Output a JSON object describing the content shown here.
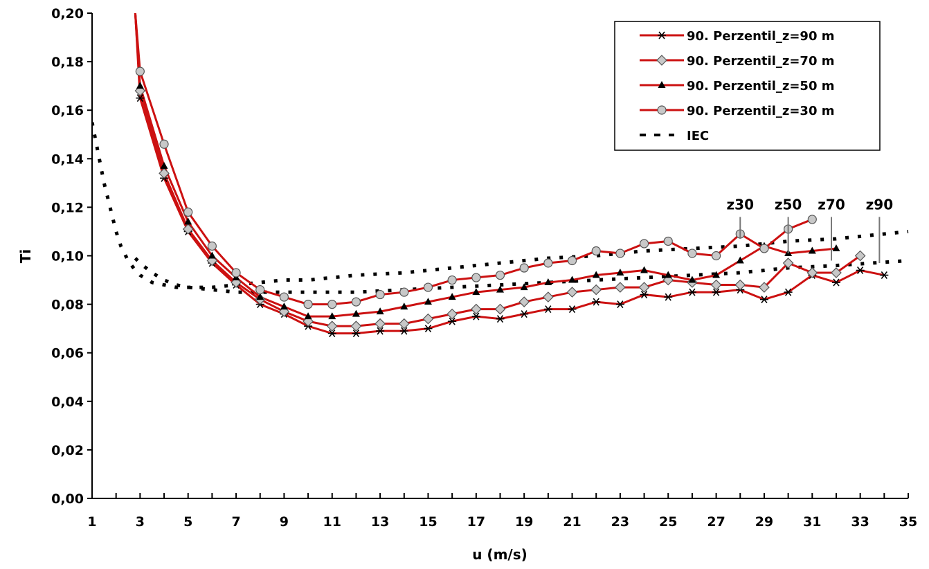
{
  "chart_data": {
    "type": "line",
    "xlabel": "u (m/s)",
    "ylabel": "Ti",
    "xlim": [
      1,
      35
    ],
    "ylim": [
      0,
      0.2
    ],
    "x_ticks": [
      "1",
      "3",
      "5",
      "7",
      "9",
      "11",
      "13",
      "15",
      "17",
      "19",
      "21",
      "23",
      "25",
      "27",
      "29",
      "31",
      "33",
      "35"
    ],
    "y_ticks": [
      "0,00",
      "0,02",
      "0,04",
      "0,06",
      "0,08",
      "0,10",
      "0,12",
      "0,14",
      "0,16",
      "0,18",
      "0,20"
    ],
    "legend_position": "top-right",
    "grid": false,
    "colors": {
      "series_line": "#cc1111",
      "marker_fill": "#c8c8c8",
      "iec": "#000000"
    },
    "series": [
      {
        "name": "90. Perzentil_z=90 m",
        "marker": "asterisk",
        "x": [
          2.8,
          3,
          4,
          5,
          6,
          7,
          8,
          9,
          10,
          11,
          12,
          13,
          14,
          15,
          16,
          17,
          18,
          19,
          20,
          21,
          22,
          23,
          24,
          25,
          26,
          27,
          28,
          29,
          30,
          31,
          32,
          33,
          34
        ],
        "y": [
          0.2,
          0.165,
          0.132,
          0.11,
          0.097,
          0.088,
          0.08,
          0.076,
          0.071,
          0.068,
          0.068,
          0.069,
          0.069,
          0.07,
          0.073,
          0.075,
          0.074,
          0.076,
          0.078,
          0.078,
          0.081,
          0.08,
          0.084,
          0.083,
          0.085,
          0.085,
          0.086,
          0.082,
          0.085,
          0.092,
          0.089,
          0.094,
          0.092
        ]
      },
      {
        "name": "90. Perzentil_z=70 m",
        "marker": "diamond",
        "x": [
          2.8,
          3,
          4,
          5,
          6,
          7,
          8,
          9,
          10,
          11,
          12,
          13,
          14,
          15,
          16,
          17,
          18,
          19,
          20,
          21,
          22,
          23,
          24,
          25,
          26,
          27,
          28,
          29,
          30,
          31,
          32,
          33
        ],
        "y": [
          0.2,
          0.168,
          0.134,
          0.111,
          0.098,
          0.089,
          0.082,
          0.077,
          0.073,
          0.071,
          0.071,
          0.072,
          0.072,
          0.074,
          0.076,
          0.078,
          0.078,
          0.081,
          0.083,
          0.085,
          0.086,
          0.087,
          0.087,
          0.09,
          0.089,
          0.088,
          0.088,
          0.087,
          0.097,
          0.093,
          0.093,
          0.1
        ]
      },
      {
        "name": "90. Perzentil_z=50 m",
        "marker": "triangle",
        "x": [
          2.8,
          3,
          4,
          5,
          6,
          7,
          8,
          9,
          10,
          11,
          12,
          13,
          14,
          15,
          16,
          17,
          18,
          19,
          20,
          21,
          22,
          23,
          24,
          25,
          26,
          27,
          28,
          29,
          30,
          31,
          32
        ],
        "y": [
          0.2,
          0.17,
          0.137,
          0.114,
          0.1,
          0.091,
          0.083,
          0.079,
          0.075,
          0.075,
          0.076,
          0.077,
          0.079,
          0.081,
          0.083,
          0.085,
          0.086,
          0.087,
          0.089,
          0.09,
          0.092,
          0.093,
          0.094,
          0.092,
          0.09,
          0.092,
          0.098,
          0.104,
          0.101,
          0.102,
          0.103
        ]
      },
      {
        "name": "90. Perzentil_z=30 m",
        "marker": "circle",
        "x": [
          2.8,
          3,
          4,
          5,
          6,
          7,
          8,
          9,
          10,
          11,
          12,
          13,
          14,
          15,
          16,
          17,
          18,
          19,
          20,
          21,
          22,
          23,
          24,
          25,
          26,
          27,
          28,
          29,
          30,
          31
        ],
        "y": [
          0.2,
          0.176,
          0.146,
          0.118,
          0.104,
          0.093,
          0.086,
          0.083,
          0.08,
          0.08,
          0.081,
          0.084,
          0.085,
          0.087,
          0.09,
          0.091,
          0.092,
          0.095,
          0.097,
          0.098,
          0.102,
          0.101,
          0.105,
          0.106,
          0.101,
          0.1,
          0.109,
          0.103,
          0.111,
          0.115
        ]
      },
      {
        "name": "IEC",
        "style": "dashed",
        "curves": [
          {
            "x": [
              1,
              1.2,
              1.5,
              1.8,
              2,
              2.2,
              2.5,
              2.8,
              3,
              3.5,
              4,
              4.5,
              5,
              6,
              7,
              8,
              9,
              10,
              11,
              12,
              14,
              16,
              18,
              20,
              22,
              24,
              26,
              28,
              30,
              32,
              35
            ],
            "y": [
              0.155,
              0.145,
              0.13,
              0.118,
              0.11,
              0.104,
              0.098,
              0.094,
              0.092,
              0.089,
              0.088,
              0.087,
              0.087,
              0.087,
              0.088,
              0.089,
              0.09,
              0.09,
              0.091,
              0.092,
              0.093,
              0.095,
              0.097,
              0.099,
              0.1,
              0.102,
              0.103,
              0.104,
              0.106,
              0.107,
              0.11
            ]
          },
          {
            "x": [
              2.8,
              3,
              3.5,
              4,
              4.5,
              5,
              6,
              7,
              8,
              9,
              10,
              11,
              12,
              14,
              16,
              18,
              20,
              22,
              24,
              26,
              28,
              30,
              32,
              35
            ],
            "y": [
              0.099,
              0.097,
              0.093,
              0.09,
              0.088,
              0.087,
              0.086,
              0.085,
              0.085,
              0.085,
              0.085,
              0.085,
              0.085,
              0.086,
              0.087,
              0.088,
              0.089,
              0.09,
              0.091,
              0.092,
              0.093,
              0.095,
              0.096,
              0.098
            ]
          }
        ]
      }
    ],
    "annotations": [
      {
        "label": "z30",
        "x": 28,
        "y_from": 0.116,
        "y_to": 0.107
      },
      {
        "label": "z50",
        "x": 30,
        "y_from": 0.116,
        "y_to": 0.101
      },
      {
        "label": "z70",
        "x": 31.8,
        "y_from": 0.116,
        "y_to": 0.098
      },
      {
        "label": "z90",
        "x": 33.8,
        "y_from": 0.116,
        "y_to": 0.097
      }
    ]
  }
}
